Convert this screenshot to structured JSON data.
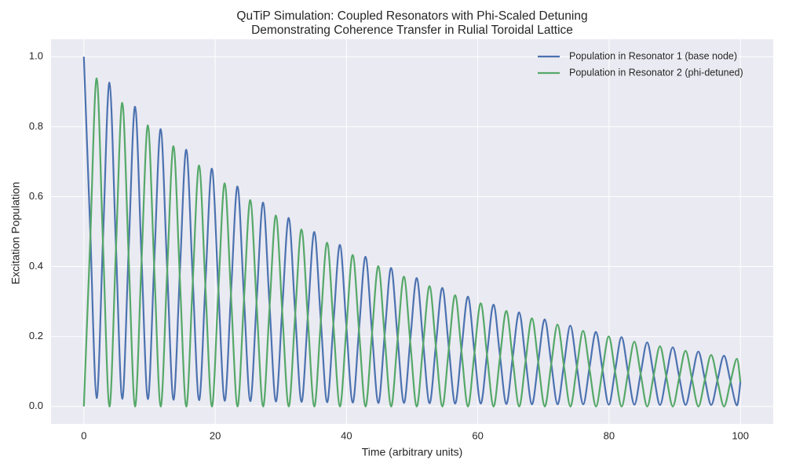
{
  "chart_data": {
    "type": "line",
    "title": "QuTiP Simulation: Coupled Resonators with Phi-Scaled Detuning",
    "subtitle": "Demonstrating Coherence Transfer in Rulial Toroidal Lattice",
    "xlabel": "Time (arbitrary units)",
    "ylabel": "Excitation Population",
    "xlim": [
      -5,
      105
    ],
    "ylim": [
      -0.05,
      1.05
    ],
    "xticks": [
      0,
      20,
      40,
      60,
      80,
      100
    ],
    "yticks": [
      {
        "value": 0,
        "label": "0.0"
      },
      {
        "value": 0.2,
        "label": "0.2"
      },
      {
        "value": 0.4,
        "label": "0.4"
      },
      {
        "value": 0.6,
        "label": "0.6"
      },
      {
        "value": 0.8,
        "label": "0.8"
      },
      {
        "value": 1,
        "label": "1.0"
      }
    ],
    "grid": true,
    "legend": "upper right",
    "x": [
      0,
      0.975,
      1.95,
      2.925,
      3.9,
      4.875,
      5.85,
      6.825,
      7.8,
      8.775,
      9.75,
      10.725,
      11.7,
      12.675,
      13.65,
      14.625,
      15.6,
      16.575,
      17.55,
      18.525,
      19.5,
      20.475,
      21.45,
      22.425,
      23.4,
      24.375,
      25.35,
      26.325,
      27.3,
      28.275,
      29.25,
      30.225,
      31.2,
      32.175,
      33.15,
      34.125,
      35.1,
      36.075,
      37.05,
      38.025,
      39,
      39.975,
      40.95,
      41.925,
      42.9,
      43.875,
      44.85,
      45.825,
      46.8,
      47.775,
      48.75,
      49.725,
      50.7,
      51.675,
      52.65,
      53.625,
      54.6,
      55.575,
      56.55,
      57.525,
      58.5,
      59.475,
      60.45,
      61.425,
      62.4,
      63.375,
      64.35,
      65.325,
      66.3,
      67.275,
      68.25,
      69.225,
      70.2,
      71.175,
      72.15,
      73.125,
      74.1,
      75.075,
      76.05,
      77.025,
      78,
      78.975,
      79.95,
      80.925,
      81.9,
      82.875,
      83.85,
      84.825,
      85.8,
      86.775,
      87.75,
      88.725,
      89.7,
      90.675,
      91.65,
      92.625,
      93.6,
      94.575,
      95.55,
      96.525,
      97.5,
      98.475,
      99.45,
      100
    ],
    "series": [
      {
        "name": "Population in Resonator 1 (base node)",
        "color": "#4c72b0",
        "values": [
          1,
          0.503,
          0.024,
          0.484,
          0.926,
          0.465,
          0.022,
          0.448,
          0.857,
          0.431,
          0.021,
          0.414,
          0.793,
          0.399,
          0.019,
          0.384,
          0.734,
          0.369,
          0.018,
          0.355,
          0.68,
          0.342,
          0.016,
          0.329,
          0.629,
          0.316,
          0.015,
          0.304,
          0.583,
          0.293,
          0.014,
          0.282,
          0.539,
          0.271,
          0.013,
          0.261,
          0.499,
          0.251,
          0.012,
          0.241,
          0.462,
          0.232,
          0.011,
          0.223,
          0.428,
          0.215,
          0.01,
          0.207,
          0.396,
          0.199,
          0.01,
          0.191,
          0.367,
          0.184,
          0.009,
          0.177,
          0.339,
          0.171,
          0.008,
          0.164,
          0.314,
          0.158,
          0.008,
          0.152,
          0.291,
          0.146,
          0.007,
          0.141,
          0.269,
          0.135,
          0.006,
          0.13,
          0.249,
          0.125,
          0.006,
          0.12,
          0.231,
          0.116,
          0.006,
          0.112,
          0.213,
          0.107,
          0.005,
          0.103,
          0.198,
          0.099,
          0.005,
          0.096,
          0.183,
          0.092,
          0.004,
          0.088,
          0.169,
          0.085,
          0.004,
          0.082,
          0.157,
          0.079,
          0.004,
          0.076,
          0.145,
          0.073,
          0.003,
          0.07
        ]
      },
      {
        "name": "Population in Resonator 2 (phi-detuned)",
        "color": "#55a868",
        "values": [
          0,
          0.478,
          0.938,
          0.46,
          0,
          0.443,
          0.868,
          0.426,
          0,
          0.41,
          0.804,
          0.394,
          0,
          0.379,
          0.744,
          0.365,
          0,
          0.351,
          0.689,
          0.338,
          0,
          0.325,
          0.638,
          0.313,
          0,
          0.301,
          0.59,
          0.289,
          0,
          0.279,
          0.546,
          0.268,
          0,
          0.258,
          0.506,
          0.248,
          0,
          0.239,
          0.468,
          0.23,
          0,
          0.221,
          0.433,
          0.213,
          0,
          0.205,
          0.401,
          0.197,
          0,
          0.189,
          0.371,
          0.182,
          0,
          0.175,
          0.344,
          0.169,
          0,
          0.162,
          0.318,
          0.156,
          0,
          0.15,
          0.295,
          0.144,
          0,
          0.139,
          0.273,
          0.134,
          0,
          0.129,
          0.252,
          0.124,
          0,
          0.119,
          0.234,
          0.115,
          0,
          0.11,
          0.216,
          0.106,
          0,
          0.102,
          0.2,
          0.098,
          0,
          0.094,
          0.185,
          0.091,
          0,
          0.087,
          0.172,
          0.084,
          0,
          0.081,
          0.159,
          0.078,
          0,
          0.075,
          0.147,
          0.072,
          0,
          0.069,
          0.136,
          0.07
        ]
      }
    ]
  }
}
